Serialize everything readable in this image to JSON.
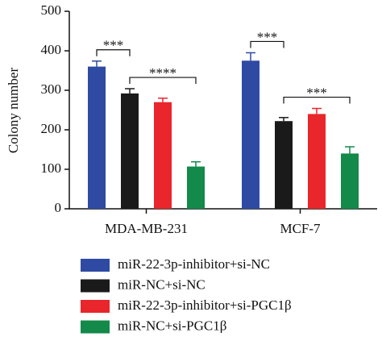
{
  "chart_data": {
    "type": "bar",
    "y_label": "Colony number",
    "categories": [
      "MDA-MB-231",
      "MCF-7"
    ],
    "series": [
      {
        "name": "miR-22-3p-inhibitor+si-NC",
        "color": "#2e4aa3",
        "values": [
          360,
          375
        ],
        "errors": [
          14,
          20
        ]
      },
      {
        "name": "miR-NC+si-NC",
        "color": "#1a1a1a",
        "values": [
          292,
          222
        ],
        "errors": [
          12,
          9
        ]
      },
      {
        "name": "miR-22-3p-inhibitor+si-PGC1β",
        "color": "#e8262b",
        "values": [
          270,
          240
        ],
        "errors": [
          10,
          14
        ]
      },
      {
        "name": "miR-NC+si-PGC1β",
        "color": "#13894a",
        "values": [
          107,
          140
        ],
        "errors": [
          12,
          17
        ]
      }
    ],
    "annotations": [
      {
        "text": "***",
        "group": 0,
        "from": 0,
        "to": 1
      },
      {
        "text": "****",
        "group": 0,
        "from": 1,
        "to": 3
      },
      {
        "text": "***",
        "group": 1,
        "from": 0,
        "to": 1
      },
      {
        "text": "***",
        "group": 1,
        "from": 1,
        "to": 3
      }
    ],
    "ylim": [
      0,
      500
    ],
    "yticks": [
      0,
      100,
      200,
      300,
      400,
      500
    ]
  }
}
